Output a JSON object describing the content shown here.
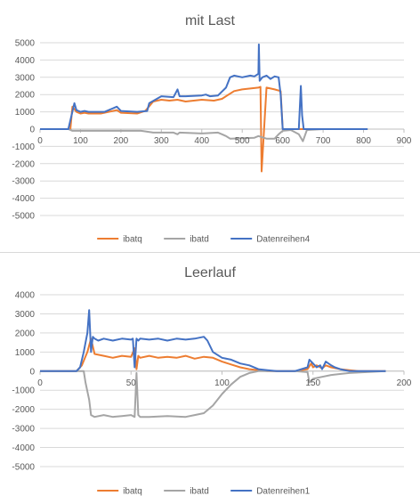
{
  "chart_data": [
    {
      "type": "line",
      "title": "mit Last",
      "xlabel": "",
      "ylabel": "",
      "xlim": [
        0,
        900
      ],
      "ylim": [
        -5000,
        5000
      ],
      "xticks": [
        0,
        100,
        200,
        300,
        400,
        500,
        600,
        700,
        800,
        900
      ],
      "yticks": [
        5000,
        4000,
        3000,
        2000,
        1000,
        0,
        -1000,
        -2000,
        -3000,
        -4000,
        -5000
      ],
      "grid": "horizontal",
      "legend_position": "bottom",
      "series": [
        {
          "name": "ibatq",
          "color": "#ED7D31",
          "x": [
            0,
            75,
            80,
            90,
            100,
            110,
            120,
            150,
            190,
            200,
            240,
            260,
            280,
            300,
            320,
            340,
            360,
            400,
            430,
            450,
            480,
            500,
            520,
            540,
            545,
            548,
            560,
            580,
            595,
            600,
            640,
            700,
            810
          ],
          "y": [
            0,
            0,
            1300,
            1000,
            900,
            950,
            900,
            900,
            1100,
            950,
            900,
            1050,
            1600,
            1700,
            1650,
            1700,
            1600,
            1700,
            1650,
            1750,
            2200,
            2300,
            2350,
            2400,
            2450,
            -2450,
            2400,
            2300,
            2200,
            0,
            0,
            0,
            0
          ]
        },
        {
          "name": "ibatd",
          "color": "#A5A5A5",
          "x": [
            0,
            70,
            80,
            250,
            280,
            330,
            340,
            345,
            400,
            440,
            450,
            460,
            470,
            530,
            540,
            560,
            580,
            590,
            600,
            620,
            640,
            650,
            660,
            700,
            810
          ],
          "y": [
            0,
            0,
            -100,
            -100,
            -200,
            -200,
            -300,
            -200,
            -250,
            -200,
            -300,
            -400,
            -550,
            -500,
            -400,
            -550,
            -550,
            -300,
            -100,
            -50,
            -300,
            -700,
            -50,
            0,
            0
          ]
        },
        {
          "name": "Datenreihen4",
          "color": "#4472C4",
          "x": [
            0,
            70,
            78,
            85,
            90,
            100,
            110,
            120,
            160,
            190,
            200,
            240,
            265,
            270,
            300,
            330,
            340,
            345,
            360,
            400,
            410,
            420,
            440,
            460,
            470,
            480,
            500,
            520,
            530,
            540,
            541,
            543,
            550,
            560,
            570,
            580,
            590,
            595,
            600,
            640,
            645,
            648,
            652,
            660,
            700,
            810
          ],
          "y": [
            0,
            0,
            800,
            1500,
            1100,
            1000,
            1050,
            1000,
            1000,
            1300,
            1050,
            1000,
            1050,
            1500,
            1900,
            1850,
            2300,
            1900,
            1900,
            1950,
            2000,
            1900,
            1950,
            2400,
            3000,
            3100,
            3000,
            3100,
            3050,
            3200,
            4900,
            2800,
            3000,
            3100,
            2900,
            3050,
            3000,
            2000,
            0,
            0,
            2500,
            800,
            0,
            0,
            0,
            0
          ]
        }
      ],
      "legend": [
        "ibatq",
        "ibatd",
        "Datenreihen4"
      ]
    },
    {
      "type": "line",
      "title": "Leerlauf",
      "xlabel": "",
      "ylabel": "",
      "xlim": [
        0,
        200
      ],
      "ylim": [
        -5000,
        4000
      ],
      "xticks": [
        0,
        50,
        100,
        150,
        200
      ],
      "yticks": [
        4000,
        3000,
        2000,
        1000,
        0,
        -1000,
        -2000,
        -3000,
        -4000,
        -5000
      ],
      "grid": "horizontal",
      "legend_position": "bottom",
      "series": [
        {
          "name": "ibatq",
          "color": "#ED7D31",
          "x": [
            0,
            20,
            23,
            26,
            28,
            30,
            35,
            40,
            45,
            50,
            52,
            53,
            54,
            55,
            60,
            65,
            70,
            75,
            80,
            85,
            90,
            95,
            100,
            105,
            110,
            115,
            120,
            125,
            140,
            147,
            149,
            150,
            152,
            155,
            157,
            160,
            165,
            170,
            175,
            190
          ],
          "y": [
            0,
            0,
            300,
            1000,
            1700,
            900,
            800,
            700,
            800,
            750,
            1200,
            100,
            800,
            700,
            800,
            700,
            750,
            700,
            800,
            650,
            750,
            700,
            500,
            350,
            200,
            100,
            50,
            0,
            0,
            100,
            400,
            200,
            300,
            150,
            300,
            200,
            100,
            50,
            0,
            0
          ]
        },
        {
          "name": "ibatd",
          "color": "#A5A5A5",
          "x": [
            0,
            24,
            25,
            27,
            28,
            30,
            35,
            40,
            45,
            50,
            52,
            53,
            54,
            55,
            60,
            70,
            80,
            85,
            90,
            95,
            100,
            105,
            110,
            115,
            120,
            125,
            140,
            147,
            148,
            150,
            155,
            160,
            170,
            190
          ],
          "y": [
            0,
            0,
            -600,
            -1500,
            -2300,
            -2400,
            -2300,
            -2400,
            -2350,
            -2300,
            -2400,
            -100,
            -2300,
            -2400,
            -2400,
            -2350,
            -2400,
            -2300,
            -2200,
            -1800,
            -1200,
            -700,
            -300,
            -100,
            0,
            0,
            0,
            -50,
            -600,
            -400,
            -300,
            -200,
            -100,
            0
          ]
        },
        {
          "name": "Datenreihen1",
          "color": "#4472C4",
          "x": [
            0,
            20,
            22,
            24,
            26,
            27,
            28,
            29,
            30,
            32,
            35,
            40,
            45,
            50,
            51,
            52,
            53,
            54,
            55,
            60,
            65,
            70,
            75,
            80,
            85,
            90,
            92,
            95,
            100,
            105,
            110,
            115,
            120,
            125,
            130,
            140,
            147,
            148,
            150,
            152,
            154,
            155,
            157,
            160,
            162,
            165,
            170,
            190
          ],
          "y": [
            0,
            0,
            200,
            1000,
            2000,
            3200,
            1000,
            1800,
            1700,
            1600,
            1700,
            1600,
            1700,
            1650,
            1700,
            200,
            1700,
            1600,
            1700,
            1650,
            1700,
            1600,
            1700,
            1650,
            1700,
            1800,
            1600,
            1000,
            700,
            600,
            400,
            300,
            100,
            50,
            0,
            0,
            200,
            600,
            400,
            200,
            300,
            100,
            500,
            300,
            200,
            100,
            0,
            0
          ]
        }
      ],
      "legend": [
        "ibatq",
        "ibatd",
        "Datenreihen1"
      ]
    }
  ]
}
